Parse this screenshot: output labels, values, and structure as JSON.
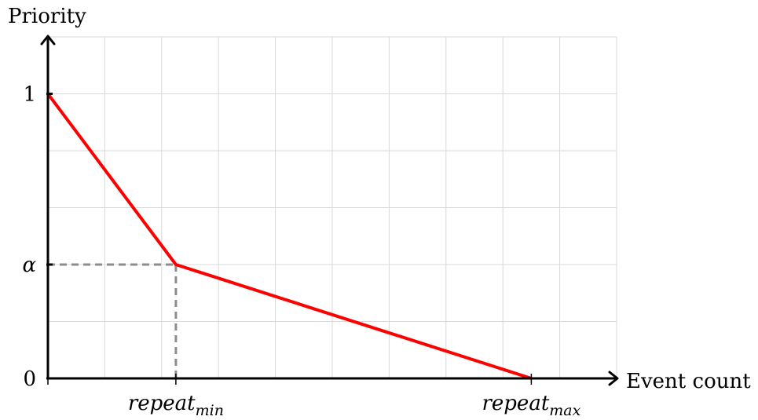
{
  "chart_data": {
    "type": "line",
    "xlabel": "Event count",
    "ylabel": "Priority",
    "x_ticks": [
      {
        "value": 2.25,
        "base": "repeat",
        "sub": "min"
      },
      {
        "value": 8.5,
        "base": "repeat",
        "sub": "max"
      }
    ],
    "y_ticks": [
      {
        "value": 0,
        "label": "0",
        "color": "#000000"
      },
      {
        "value": 0.4,
        "label": "α",
        "color": "#8c8c8c"
      },
      {
        "value": 1,
        "label": "1",
        "color": "#000000"
      }
    ],
    "xlim": [
      0,
      10
    ],
    "ylim": [
      0,
      1.2
    ],
    "grid": true,
    "grid_step_x": 1,
    "grid_step_y": 0.2,
    "series": [
      {
        "color": "#ff0000",
        "x": [
          0,
          2.25,
          8.5
        ],
        "y": [
          1,
          0.4,
          0
        ]
      }
    ],
    "reference_lines": {
      "color": "#8c8c8c",
      "style": "dashed",
      "point": {
        "x": 2.25,
        "y": 0.4
      }
    },
    "colors": {
      "axis": "#000000",
      "grid": "#d9d9d9"
    }
  }
}
